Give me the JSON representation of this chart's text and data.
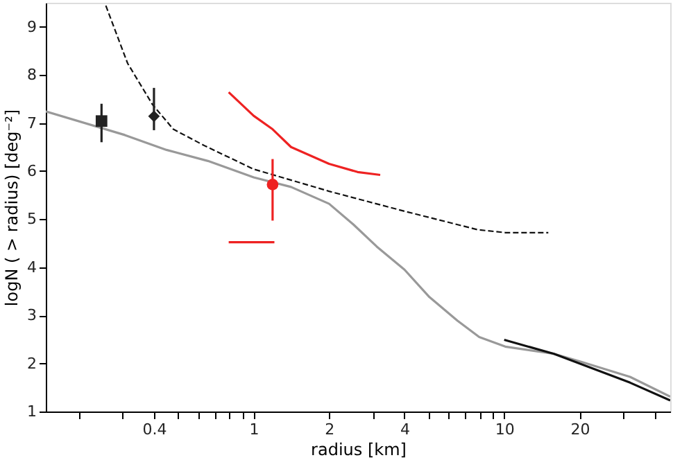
{
  "chart_data": {
    "type": "line",
    "xlabel": "radius [km]",
    "ylabel": "logN ( > radius) [deg⁻²]",
    "log": "x",
    "grid": false,
    "xlim": [
      0.148,
      46
    ],
    "ylim": [
      1,
      9.5
    ],
    "xticks": [
      {
        "value": 0.2,
        "label": null
      },
      {
        "value": 0.3,
        "label": null
      },
      0.4,
      {
        "value": 0.5,
        "label": null
      },
      {
        "value": 0.6,
        "label": null
      },
      {
        "value": 0.7,
        "label": null
      },
      {
        "value": 0.8,
        "label": null
      },
      {
        "value": 0.9,
        "label": null
      },
      1,
      2,
      {
        "value": 3,
        "label": null
      },
      4,
      {
        "value": 5,
        "label": null
      },
      {
        "value": 6,
        "label": null
      },
      {
        "value": 7,
        "label": null
      },
      {
        "value": 8,
        "label": null
      },
      {
        "value": 9,
        "label": null
      },
      10,
      20,
      {
        "value": 30,
        "label": null
      },
      {
        "value": 40,
        "label": null
      }
    ],
    "yticks": [
      1,
      2,
      3,
      4,
      5,
      6,
      7,
      8,
      9
    ],
    "series": [
      {
        "color": "#999999",
        "line_style": "solid",
        "marker": "none",
        "x": [
          0.148,
          0.306,
          0.449,
          0.657,
          1,
          1.41,
          2,
          2.5,
          3.1,
          4,
          5.03,
          6.5,
          7.95,
          10.1,
          15.8,
          20.4,
          31.8,
          46
        ],
        "values": [
          7.24,
          6.75,
          6.44,
          6.21,
          5.87,
          5.67,
          5.32,
          4.89,
          4.43,
          3.95,
          3.38,
          2.89,
          2.55,
          2.35,
          2.2,
          2.03,
          1.72,
          1.31
        ]
      },
      {
        "color": "#111111",
        "line_style": "solid",
        "marker": "none",
        "x": [
          10,
          15.8,
          31.8,
          46
        ],
        "values": [
          2.49,
          2.2,
          1.6,
          1.23
        ]
      },
      {
        "color": "#111111",
        "line_style": "dashed",
        "marker": "none",
        "x": [
          0.257,
          0.314,
          0.395,
          0.478,
          0.641,
          1,
          2,
          3.9,
          7.85,
          10.1,
          15
        ],
        "values": [
          9.44,
          8.24,
          7.38,
          6.87,
          6.52,
          6.04,
          5.58,
          5.18,
          4.78,
          4.72,
          4.72
        ]
      },
      {
        "color": "#ee2222",
        "line_style": "solid",
        "marker": "none",
        "x": [
          0.795,
          1,
          1.19,
          1.41,
          2,
          2.6,
          3.2
        ],
        "values": [
          7.64,
          7.15,
          6.87,
          6.5,
          6.15,
          5.98,
          5.92
        ]
      },
      {
        "color": "#ee2222",
        "line_style": "solid",
        "marker": "none",
        "x": [
          0.795,
          1.21
        ],
        "values": [
          4.52,
          4.52
        ]
      },
      {
        "type": "scatter",
        "color": "#ee2222",
        "marker": "circle",
        "x": [
          1.19
        ],
        "values": [
          5.72
        ],
        "errors": [
          [
            4.97,
            6.25
          ]
        ]
      },
      {
        "type": "scatter",
        "color": "#222222",
        "marker": "square",
        "x": [
          0.247
        ],
        "values": [
          7.04
        ],
        "errors": [
          [
            6.6,
            7.4
          ]
        ]
      },
      {
        "type": "scatter",
        "color": "#222222",
        "marker": "diamond",
        "x": [
          0.4
        ],
        "values": [
          7.14
        ],
        "errors": [
          [
            6.85,
            7.73
          ]
        ]
      }
    ]
  }
}
